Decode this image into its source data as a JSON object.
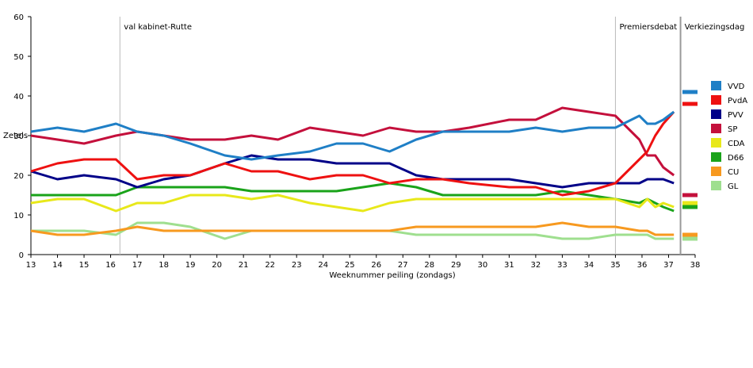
{
  "chart_data": {
    "type": "line",
    "xlabel": "Weeknummer peiling (zondags)",
    "ylabel": "Zetels",
    "xlim": [
      13,
      38
    ],
    "ylim": [
      0,
      60
    ],
    "xticks": [
      13,
      14,
      15,
      16,
      17,
      18,
      19,
      20,
      21,
      22,
      23,
      24,
      25,
      26,
      27,
      28,
      29,
      30,
      31,
      32,
      33,
      34,
      35,
      36,
      37,
      38
    ],
    "yticks": [
      0,
      10,
      20,
      30,
      40,
      50,
      60
    ],
    "grid": false,
    "legend_position": "right",
    "annotations": [
      {
        "label": "val kabinet-Rutte",
        "x": 16.35
      },
      {
        "label": "Premiersdebat",
        "x": 35
      },
      {
        "label": "Verkiezingsdag",
        "x": 37.45
      }
    ],
    "series": [
      {
        "name": "VVD",
        "color": "#1f7fc6",
        "x": [
          13,
          14,
          15,
          16.2,
          17,
          18,
          19,
          20.3,
          21.3,
          22.3,
          23.5,
          24.5,
          25.5,
          26.5,
          27.5,
          28.5,
          29.5,
          31,
          32,
          33,
          34,
          35,
          35.9,
          36.2,
          36.5,
          36.8,
          37.2
        ],
        "y": [
          31,
          32,
          31,
          33,
          31,
          30,
          28,
          25,
          24,
          25,
          26,
          28,
          28,
          26,
          29,
          31,
          31,
          31,
          32,
          31,
          32,
          32,
          35,
          33,
          33,
          34,
          36
        ],
        "final": 41
      },
      {
        "name": "PvdA",
        "color": "#ee1111",
        "x": [
          13,
          14,
          15,
          16.2,
          17,
          18,
          19,
          20.3,
          21.3,
          22.3,
          23.5,
          24.5,
          25.5,
          26.5,
          27.5,
          28.5,
          29.5,
          31,
          32,
          33,
          34,
          35,
          35.9,
          36.2,
          36.5,
          36.8,
          37.2
        ],
        "y": [
          21,
          23,
          24,
          24,
          19,
          20,
          20,
          23,
          21,
          21,
          19,
          20,
          20,
          18,
          19,
          19,
          18,
          17,
          17,
          15,
          16,
          18,
          24,
          26,
          30,
          33,
          36
        ],
        "final": 38
      },
      {
        "name": "PVV",
        "color": "#000088",
        "x": [
          13,
          14,
          15,
          16.2,
          17,
          18,
          19,
          20.3,
          21.3,
          22.3,
          23.5,
          24.5,
          25.5,
          26.5,
          27.5,
          28.5,
          29.5,
          31,
          32,
          33,
          34,
          35,
          35.9,
          36.2,
          36.5,
          36.8,
          37.2
        ],
        "y": [
          21,
          19,
          20,
          19,
          17,
          19,
          20,
          23,
          25,
          24,
          24,
          23,
          23,
          23,
          20,
          19,
          19,
          19,
          18,
          17,
          18,
          18,
          18,
          19,
          19,
          19,
          18
        ],
        "final": 15
      },
      {
        "name": "SP",
        "color": "#c4103c",
        "x": [
          13,
          14,
          15,
          16.2,
          17,
          18,
          19,
          20.3,
          21.3,
          22.3,
          23.5,
          24.5,
          25.5,
          26.5,
          27.5,
          28.5,
          29.5,
          31,
          32,
          33,
          34,
          35,
          35.9,
          36.2,
          36.5,
          36.8,
          37.2
        ],
        "y": [
          30,
          29,
          28,
          30,
          31,
          30,
          29,
          29,
          30,
          29,
          32,
          31,
          30,
          32,
          31,
          31,
          32,
          34,
          34,
          37,
          36,
          35,
          29,
          25,
          25,
          22,
          20
        ],
        "final": 15
      },
      {
        "name": "CDA",
        "color": "#e8e81a",
        "x": [
          13,
          14,
          15,
          16.2,
          17,
          18,
          19,
          20.3,
          21.3,
          22.3,
          23.5,
          24.5,
          25.5,
          26.5,
          27.5,
          28.5,
          29.5,
          31,
          32,
          33,
          34,
          35,
          35.9,
          36.2,
          36.5,
          36.8,
          37.2
        ],
        "y": [
          13,
          14,
          14,
          11,
          13,
          13,
          15,
          15,
          14,
          15,
          13,
          12,
          11,
          13,
          14,
          14,
          14,
          14,
          14,
          14,
          14,
          14,
          12,
          14,
          12,
          13,
          12
        ],
        "final": 13
      },
      {
        "name": "D66",
        "color": "#1aa31a",
        "x": [
          13,
          14,
          15,
          16.2,
          17,
          18,
          19,
          20.3,
          21.3,
          22.3,
          23.5,
          24.5,
          25.5,
          26.5,
          27.5,
          28.5,
          29.5,
          31,
          32,
          33,
          34,
          35,
          35.9,
          36.2,
          36.5,
          36.8,
          37.2
        ],
        "y": [
          15,
          15,
          15,
          15,
          17,
          17,
          17,
          17,
          16,
          16,
          16,
          16,
          17,
          18,
          17,
          15,
          15,
          15,
          15,
          16,
          15,
          14,
          13,
          14,
          13,
          12,
          11
        ],
        "final": 12
      },
      {
        "name": "CU",
        "color": "#f7991f",
        "x": [
          13,
          14,
          15,
          16.2,
          17,
          18,
          19,
          20.3,
          21.3,
          22.3,
          23.5,
          24.5,
          25.5,
          26.5,
          27.5,
          28.5,
          29.5,
          31,
          32,
          33,
          34,
          35,
          35.9,
          36.2,
          36.5,
          36.8,
          37.2
        ],
        "y": [
          6,
          5,
          5,
          6,
          7,
          6,
          6,
          6,
          6,
          6,
          6,
          6,
          6,
          6,
          7,
          7,
          7,
          7,
          7,
          8,
          7,
          7,
          6,
          6,
          5,
          5,
          5
        ],
        "final": 5
      },
      {
        "name": "GL",
        "color": "#9fdf8f",
        "x": [
          13,
          14,
          15,
          16.2,
          17,
          18,
          19,
          20.3,
          21.3,
          22.3,
          23.5,
          24.5,
          25.5,
          26.5,
          27.5,
          28.5,
          29.5,
          31,
          32,
          33,
          34,
          35,
          35.9,
          36.2,
          36.5,
          36.8,
          37.2
        ],
        "y": [
          6,
          6,
          6,
          5,
          8,
          8,
          7,
          4,
          6,
          6,
          6,
          6,
          6,
          6,
          5,
          5,
          5,
          5,
          5,
          4,
          4,
          5,
          5,
          5,
          4,
          4,
          4
        ],
        "final": 4
      }
    ]
  }
}
